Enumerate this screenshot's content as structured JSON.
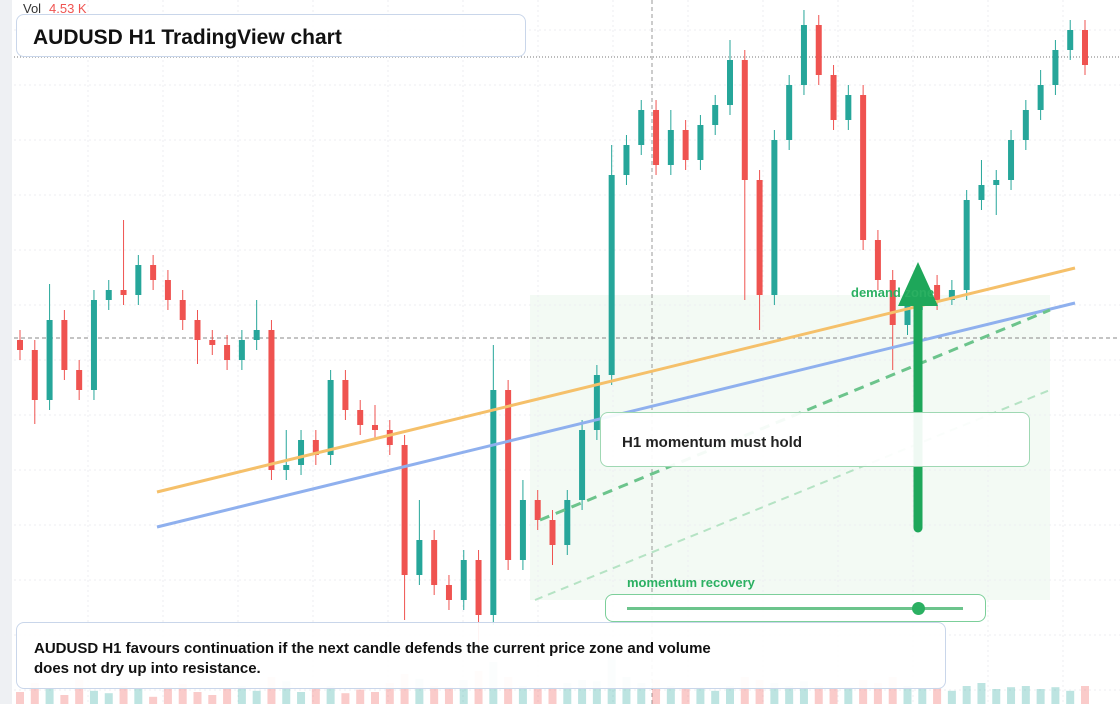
{
  "chart_data": {
    "type": "candlestick",
    "title": "AUDUSD H1 TradingView chart",
    "volume_label": "Vol",
    "volume_value": "4.53 K",
    "open": [
      364,
      354,
      304,
      384,
      334,
      314,
      404,
      414,
      409,
      439,
      424,
      404,
      384,
      364,
      359,
      344,
      364,
      374,
      234,
      239,
      264,
      249,
      324,
      294,
      279,
      274,
      259,
      129,
      164,
      119,
      104,
      144,
      89,
      314,
      144,
      204,
      184,
      159,
      204,
      274,
      329,
      529,
      559,
      594,
      539,
      574,
      544,
      579,
      599,
      644,
      524,
      409,
      564,
      619,
      679,
      629,
      584,
      609,
      464,
      424,
      379,
      404,
      419,
      404,
      414,
      504,
      519,
      524,
      564,
      594,
      619,
      654,
      674
    ],
    "high": [
      374,
      364,
      420,
      394,
      344,
      414,
      424,
      484,
      449,
      449,
      434,
      414,
      394,
      374,
      369,
      374,
      404,
      384,
      274,
      274,
      274,
      334,
      334,
      304,
      299,
      284,
      269,
      204,
      174,
      129,
      154,
      154,
      359,
      324,
      224,
      214,
      194,
      214,
      284,
      339,
      559,
      569,
      604,
      604,
      594,
      584,
      589,
      609,
      664,
      654,
      534,
      574,
      629,
      694,
      689,
      639,
      619,
      619,
      474,
      434,
      414,
      429,
      429,
      424,
      514,
      544,
      534,
      574,
      604,
      634,
      664,
      684,
      684
    ],
    "low": [
      344,
      280,
      294,
      324,
      304,
      304,
      394,
      399,
      399,
      414,
      394,
      374,
      340,
      349,
      334,
      334,
      354,
      224,
      224,
      229,
      239,
      239,
      284,
      269,
      264,
      249,
      84,
      119,
      109,
      94,
      94,
      60,
      79,
      134,
      134,
      174,
      139,
      149,
      194,
      264,
      319,
      519,
      549,
      529,
      529,
      534,
      534,
      569,
      589,
      404,
      374,
      399,
      554,
      609,
      619,
      574,
      574,
      454,
      414,
      334,
      369,
      394,
      394,
      399,
      404,
      494,
      489,
      514,
      554,
      584,
      609,
      644,
      629
    ],
    "close": [
      354,
      304,
      384,
      334,
      314,
      404,
      414,
      409,
      439,
      424,
      404,
      384,
      364,
      359,
      344,
      364,
      374,
      234,
      239,
      264,
      249,
      324,
      294,
      279,
      274,
      259,
      129,
      164,
      119,
      104,
      144,
      89,
      314,
      144,
      204,
      184,
      159,
      204,
      274,
      329,
      529,
      559,
      594,
      539,
      574,
      544,
      579,
      599,
      644,
      524,
      409,
      564,
      619,
      679,
      629,
      584,
      609,
      464,
      424,
      379,
      404,
      419,
      404,
      414,
      504,
      519,
      524,
      564,
      594,
      619,
      654,
      674,
      639
    ],
    "volume": [
      20,
      35,
      25,
      15,
      40,
      22,
      18,
      30,
      25,
      12,
      28,
      33,
      20,
      15,
      25,
      30,
      22,
      45,
      38,
      20,
      26,
      30,
      18,
      24,
      20,
      35,
      50,
      42,
      30,
      28,
      40,
      55,
      70,
      45,
      30,
      25,
      28,
      35,
      40,
      38,
      80,
      45,
      35,
      40,
      30,
      25,
      28,
      22,
      30,
      45,
      40,
      35,
      30,
      38,
      30,
      25,
      28,
      40,
      35,
      45,
      30,
      25,
      28,
      22,
      30,
      35,
      25,
      28,
      30,
      25,
      28,
      22,
      30
    ],
    "ylim": [
      0,
      704
    ],
    "volume_ylim": [
      0,
      100
    ],
    "up_color": "#26a69a",
    "down_color": "#ef5350",
    "grid": true,
    "annotations": [
      "H1 momentum must hold",
      "demand zone",
      "momentum recovery"
    ],
    "note": "AUDUSD H1 favours continuation if the next candle defends the current price zone and volume does not dry up into resistance."
  }
}
